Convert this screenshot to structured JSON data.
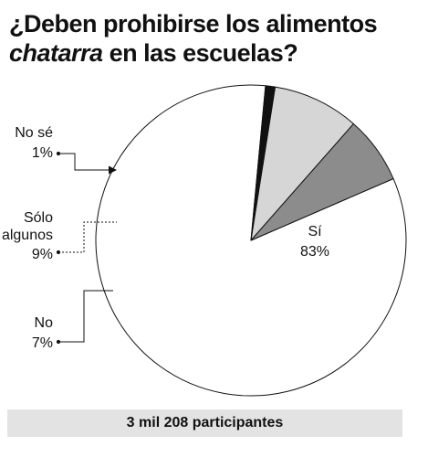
{
  "title": {
    "line1": "¿Deben prohibirse los alimentos",
    "line2_italic": "chatarra",
    "line2_rest": " en las escuelas?"
  },
  "chart_data": {
    "type": "pie",
    "title": "¿Deben prohibirse los alimentos chatarra en las escuelas?",
    "slices": [
      {
        "name": "Sí",
        "value": 83,
        "label": "83%",
        "color": "#ffffff"
      },
      {
        "name": "No sé",
        "value": 1,
        "label": "1%",
        "color": "#111111"
      },
      {
        "name": "Sólo algunos",
        "value": 9,
        "label": "9%",
        "color": "#d6d6d6"
      },
      {
        "name": "No",
        "value": 7,
        "label": "7%",
        "color": "#8c8c8c"
      }
    ],
    "unit": "%"
  },
  "labels": {
    "si_name": "Sí",
    "si_pct": "83%",
    "nose_name": "No sé",
    "nose_pct": "1%",
    "solo_line1": "Sólo",
    "solo_line2": "algunos",
    "solo_pct": "9%",
    "no_name": "No",
    "no_pct": "7%"
  },
  "footer": "3 mil 208 participantes"
}
